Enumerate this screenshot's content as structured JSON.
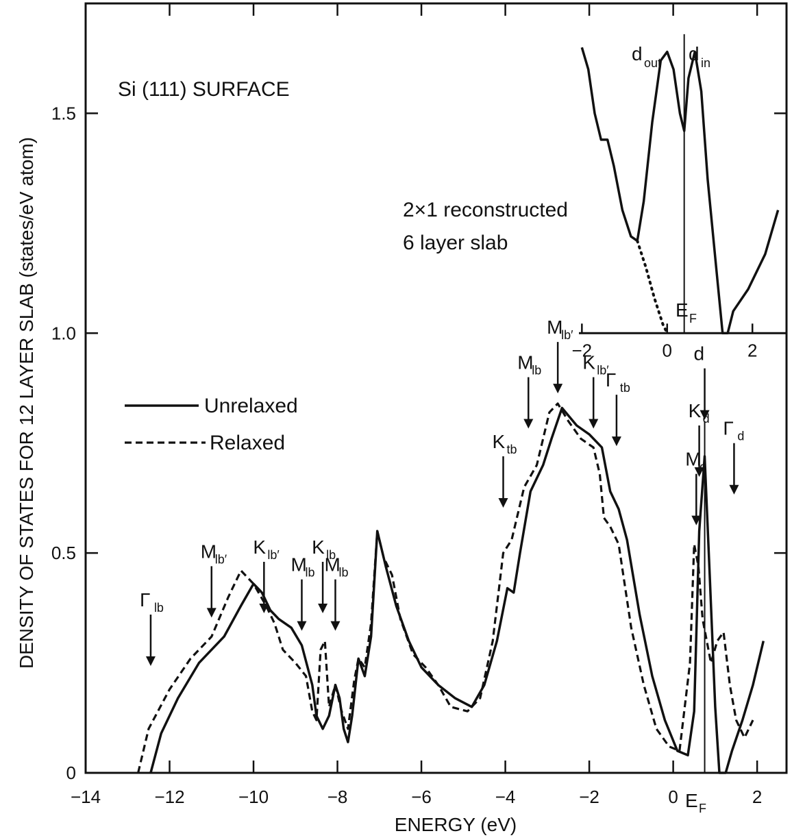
{
  "chart_data": {
    "type": "line",
    "title": "Si (111) SURFACE",
    "xlabel": "ENERGY (eV)",
    "ylabel": "DENSITY OF STATES FOR 12 LAYER SLAB (states/eV atom)",
    "xlim": [
      -14,
      2.7
    ],
    "ylim": [
      0,
      1.75
    ],
    "x_ticks": [
      -14,
      -12,
      -10,
      -8,
      -6,
      -4,
      -2,
      0,
      2
    ],
    "x_tick_labels": [
      "−14",
      "−12",
      "−10",
      "−8",
      "−6",
      "−4",
      "−2",
      "0",
      "2"
    ],
    "y_ticks": [
      0,
      0.5,
      1.0,
      1.5
    ],
    "y_tick_labels": [
      "0",
      "0.5",
      "1.0",
      "1.5"
    ],
    "fermi_label": "E",
    "fermi_sub": "F",
    "fermi_energy": 0.75,
    "legend": {
      "placement": "left",
      "entries": [
        {
          "label": "Unrelaxed",
          "style": "solid"
        },
        {
          "label": "Relaxed",
          "style": "dashed"
        }
      ]
    },
    "series": [
      {
        "name": "Unrelaxed",
        "style": "solid",
        "points": [
          [
            -12.45,
            0
          ],
          [
            -12.2,
            0.09
          ],
          [
            -11.8,
            0.17
          ],
          [
            -11.3,
            0.25
          ],
          [
            -10.7,
            0.31
          ],
          [
            -10.3,
            0.38
          ],
          [
            -10.0,
            0.43
          ],
          [
            -9.8,
            0.41
          ],
          [
            -9.6,
            0.37
          ],
          [
            -9.4,
            0.35
          ],
          [
            -9.1,
            0.33
          ],
          [
            -8.85,
            0.29
          ],
          [
            -8.6,
            0.2
          ],
          [
            -8.5,
            0.13
          ],
          [
            -8.35,
            0.1
          ],
          [
            -8.2,
            0.13
          ],
          [
            -8.05,
            0.2
          ],
          [
            -7.95,
            0.17
          ],
          [
            -7.85,
            0.1
          ],
          [
            -7.75,
            0.07
          ],
          [
            -7.65,
            0.13
          ],
          [
            -7.5,
            0.26
          ],
          [
            -7.35,
            0.22
          ],
          [
            -7.2,
            0.31
          ],
          [
            -7.05,
            0.55
          ],
          [
            -6.85,
            0.47
          ],
          [
            -6.6,
            0.38
          ],
          [
            -6.3,
            0.3
          ],
          [
            -6.0,
            0.24
          ],
          [
            -5.6,
            0.2
          ],
          [
            -5.2,
            0.17
          ],
          [
            -4.8,
            0.15
          ],
          [
            -4.5,
            0.2
          ],
          [
            -4.2,
            0.3
          ],
          [
            -3.95,
            0.42
          ],
          [
            -3.8,
            0.41
          ],
          [
            -3.65,
            0.5
          ],
          [
            -3.4,
            0.64
          ],
          [
            -3.1,
            0.7
          ],
          [
            -2.9,
            0.76
          ],
          [
            -2.65,
            0.83
          ],
          [
            -2.3,
            0.79
          ],
          [
            -2.0,
            0.77
          ],
          [
            -1.7,
            0.74
          ],
          [
            -1.5,
            0.64
          ],
          [
            -1.3,
            0.6
          ],
          [
            -1.1,
            0.53
          ],
          [
            -0.8,
            0.36
          ],
          [
            -0.5,
            0.22
          ],
          [
            -0.2,
            0.12
          ],
          [
            0.1,
            0.05
          ],
          [
            0.35,
            0.04
          ],
          [
            0.5,
            0.14
          ],
          [
            0.62,
            0.55
          ],
          [
            0.75,
            0.72
          ],
          [
            0.87,
            0.45
          ],
          [
            1.0,
            0.15
          ],
          [
            1.1,
            0.0
          ],
          [
            1.25,
            0.0
          ],
          [
            1.4,
            0.05
          ],
          [
            1.65,
            0.12
          ],
          [
            1.9,
            0.2
          ],
          [
            2.15,
            0.3
          ]
        ]
      },
      {
        "name": "Relaxed",
        "style": "dashed",
        "points": [
          [
            -12.75,
            0
          ],
          [
            -12.5,
            0.1
          ],
          [
            -12.0,
            0.19
          ],
          [
            -11.5,
            0.26
          ],
          [
            -11.0,
            0.31
          ],
          [
            -10.6,
            0.4
          ],
          [
            -10.3,
            0.46
          ],
          [
            -10.0,
            0.43
          ],
          [
            -9.7,
            0.38
          ],
          [
            -9.5,
            0.34
          ],
          [
            -9.3,
            0.28
          ],
          [
            -9.0,
            0.25
          ],
          [
            -8.75,
            0.22
          ],
          [
            -8.6,
            0.14
          ],
          [
            -8.5,
            0.12
          ],
          [
            -8.4,
            0.28
          ],
          [
            -8.3,
            0.3
          ],
          [
            -8.2,
            0.15
          ],
          [
            -8.05,
            0.2
          ],
          [
            -7.9,
            0.14
          ],
          [
            -7.75,
            0.1
          ],
          [
            -7.6,
            0.21
          ],
          [
            -7.5,
            0.26
          ],
          [
            -7.35,
            0.24
          ],
          [
            -7.2,
            0.34
          ],
          [
            -7.05,
            0.55
          ],
          [
            -6.9,
            0.49
          ],
          [
            -6.7,
            0.45
          ],
          [
            -6.5,
            0.35
          ],
          [
            -6.2,
            0.27
          ],
          [
            -5.9,
            0.24
          ],
          [
            -5.6,
            0.2
          ],
          [
            -5.3,
            0.15
          ],
          [
            -4.9,
            0.14
          ],
          [
            -4.6,
            0.17
          ],
          [
            -4.3,
            0.3
          ],
          [
            -4.05,
            0.5
          ],
          [
            -3.85,
            0.53
          ],
          [
            -3.55,
            0.65
          ],
          [
            -3.25,
            0.7
          ],
          [
            -2.95,
            0.82
          ],
          [
            -2.75,
            0.84
          ],
          [
            -2.5,
            0.8
          ],
          [
            -2.2,
            0.76
          ],
          [
            -1.9,
            0.74
          ],
          [
            -1.75,
            0.68
          ],
          [
            -1.65,
            0.58
          ],
          [
            -1.5,
            0.56
          ],
          [
            -1.3,
            0.52
          ],
          [
            -1.0,
            0.33
          ],
          [
            -0.7,
            0.2
          ],
          [
            -0.4,
            0.1
          ],
          [
            -0.1,
            0.06
          ],
          [
            0.15,
            0.05
          ],
          [
            0.4,
            0.25
          ],
          [
            0.5,
            0.52
          ],
          [
            0.6,
            0.47
          ],
          [
            0.7,
            0.35
          ],
          [
            0.9,
            0.25
          ],
          [
            1.05,
            0.3
          ],
          [
            1.2,
            0.32
          ],
          [
            1.35,
            0.2
          ],
          [
            1.5,
            0.12
          ],
          [
            1.7,
            0.08
          ],
          [
            1.9,
            0.12
          ]
        ]
      }
    ],
    "annotations": [
      {
        "label": "Γ",
        "sub": "lb",
        "x": -12.45,
        "y_top": 0.36
      },
      {
        "label": "M",
        "sub": "lb′",
        "x": -11.0,
        "y_top": 0.47
      },
      {
        "label": "K",
        "sub": "lb′",
        "x": -9.75,
        "y_top": 0.48
      },
      {
        "label": "M",
        "sub": "lb",
        "x": -8.85,
        "y_top": 0.44
      },
      {
        "label": "K",
        "sub": "lb",
        "x": -8.35,
        "y_top": 0.48
      },
      {
        "label": "M",
        "sub": "lb",
        "x": -8.05,
        "y_top": 0.44
      },
      {
        "label": "K",
        "sub": "tb",
        "x": -4.05,
        "y_top": 0.72
      },
      {
        "label": "M",
        "sub": "lb",
        "x": -3.45,
        "y_top": 0.9
      },
      {
        "label": "M",
        "sub": "lb′",
        "x": -2.75,
        "y_top": 0.98
      },
      {
        "label": "K",
        "sub": "lb′",
        "x": -1.9,
        "y_top": 0.9
      },
      {
        "label": "Γ",
        "sub": "tb",
        "x": -1.35,
        "y_top": 0.86
      },
      {
        "label": "M",
        "sub": "d",
        "x": 0.55,
        "y_top": 0.68
      },
      {
        "label": "K",
        "sub": "d",
        "x": 0.62,
        "y_top": 0.79
      },
      {
        "label": "d",
        "sub": "",
        "x": 0.75,
        "y_top": 0.92
      },
      {
        "label": "Γ",
        "sub": "d",
        "x": 1.45,
        "y_top": 0.75
      }
    ],
    "inset": {
      "title_line1": "2×1 reconstructed",
      "title_line2": "6 layer slab",
      "xlim": [
        -2.6,
        2.8
      ],
      "x_ticks": [
        -2,
        0,
        2
      ],
      "x_tick_labels": [
        "−2",
        "0",
        "2"
      ],
      "fermi_label": "E",
      "fermi_sub": "F",
      "fermi_energy": 0.4,
      "peak_labels": [
        {
          "label": "d",
          "sub": "out"
        },
        {
          "label": "d",
          "sub": "in"
        }
      ],
      "curve_points": [
        [
          -2.0,
          1.65
        ],
        [
          -1.85,
          1.6
        ],
        [
          -1.7,
          1.5
        ],
        [
          -1.55,
          1.44
        ],
        [
          -1.4,
          1.44
        ],
        [
          -1.25,
          1.38
        ],
        [
          -1.05,
          1.28
        ],
        [
          -0.85,
          1.22
        ],
        [
          -0.7,
          1.21
        ],
        [
          -0.55,
          1.3
        ],
        [
          -0.35,
          1.48
        ],
        [
          -0.15,
          1.62
        ],
        [
          0.0,
          1.64
        ],
        [
          0.15,
          1.6
        ],
        [
          0.3,
          1.5
        ],
        [
          0.4,
          1.46
        ],
        [
          0.5,
          1.58
        ],
        [
          0.65,
          1.64
        ],
        [
          0.8,
          1.55
        ],
        [
          0.95,
          1.35
        ],
        [
          1.15,
          1.15
        ],
        [
          1.3,
          1.0
        ],
        [
          1.42,
          1.0
        ],
        [
          1.55,
          1.05
        ],
        [
          1.9,
          1.1
        ],
        [
          2.3,
          1.18
        ],
        [
          2.6,
          1.28
        ]
      ],
      "dotted_points": [
        [
          -0.7,
          1.21
        ],
        [
          -0.5,
          1.15
        ],
        [
          -0.3,
          1.08
        ],
        [
          -0.1,
          1.02
        ],
        [
          0.0,
          1.0
        ]
      ]
    }
  }
}
